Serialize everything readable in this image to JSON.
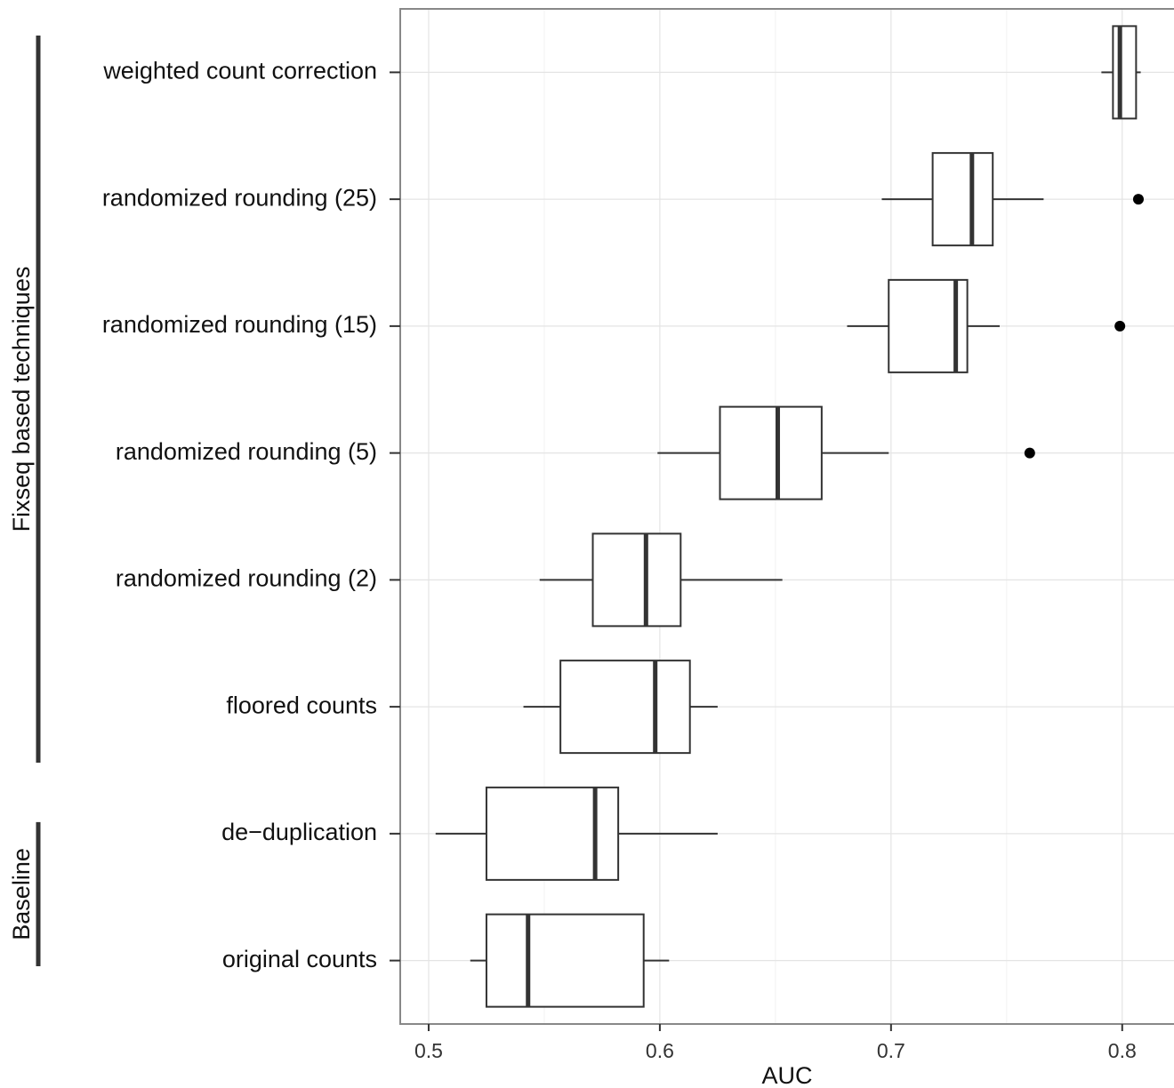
{
  "chart_data": {
    "type": "boxplot",
    "xlabel": "AUC",
    "categories": [
      "weighted count correction",
      "randomized rounding (25)",
      "randomized rounding (15)",
      "randomized rounding (5)",
      "randomized rounding (2)",
      "floored counts",
      "de−duplication",
      "original counts"
    ],
    "whislo": [
      0.791,
      0.696,
      0.681,
      0.599,
      0.548,
      0.541,
      0.503,
      0.518
    ],
    "q1": [
      0.796,
      0.718,
      0.699,
      0.626,
      0.571,
      0.557,
      0.525,
      0.525
    ],
    "med": [
      0.799,
      0.735,
      0.728,
      0.651,
      0.594,
      0.598,
      0.572,
      0.543
    ],
    "q3": [
      0.806,
      0.744,
      0.733,
      0.67,
      0.609,
      0.613,
      0.582,
      0.593
    ],
    "whishi": [
      0.808,
      0.766,
      0.747,
      0.699,
      0.653,
      0.625,
      0.625,
      0.604
    ],
    "fliers": [
      [],
      [
        0.807
      ],
      [
        0.799
      ],
      [
        0.76
      ],
      [],
      [],
      [],
      []
    ],
    "groups": [
      "Fixseq based techniques",
      "Baseline"
    ],
    "xlim": [
      0.4877,
      0.8224
    ],
    "xticks": [
      0.5,
      0.6,
      0.7,
      0.8
    ],
    "minor_xticks": [
      0.55,
      0.65,
      0.75
    ],
    "grid": true,
    "color": "#333333"
  }
}
